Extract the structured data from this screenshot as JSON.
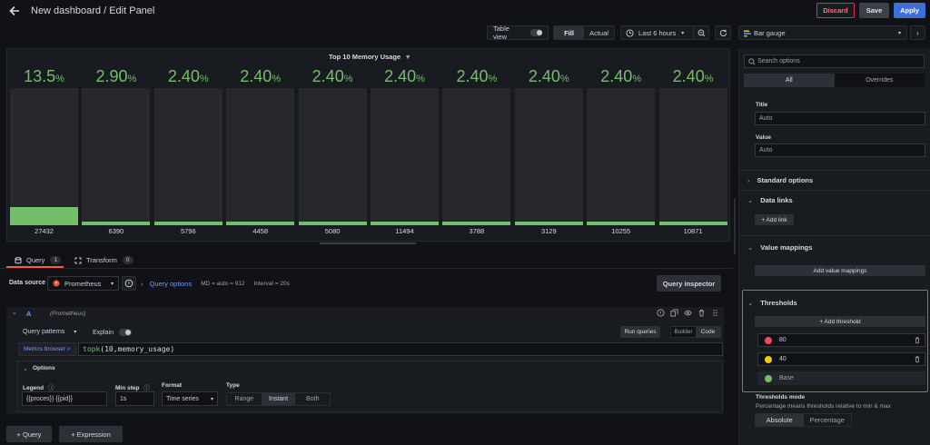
{
  "header": {
    "title": "New dashboard / Edit Panel",
    "discard_label": "Discard",
    "save_label": "Save",
    "apply_label": "Apply"
  },
  "toolbar": {
    "table_view_label": "Table view",
    "fill_label": "Fill",
    "actual_label": "Actual",
    "time_range": "Last 6 hours"
  },
  "panel": {
    "title": "Top 10 Memory Usage",
    "gauges": [
      {
        "value": "13.5",
        "unit": "%",
        "label": "27432",
        "fill_pct": 13.5
      },
      {
        "value": "2.90",
        "unit": "%",
        "label": "6390",
        "fill_pct": 2.9
      },
      {
        "value": "2.40",
        "unit": "%",
        "label": "5796",
        "fill_pct": 2.4
      },
      {
        "value": "2.40",
        "unit": "%",
        "label": "4458",
        "fill_pct": 2.4
      },
      {
        "value": "2.40",
        "unit": "%",
        "label": "5080",
        "fill_pct": 2.4
      },
      {
        "value": "2.40",
        "unit": "%",
        "label": "11494",
        "fill_pct": 2.4
      },
      {
        "value": "2.40",
        "unit": "%",
        "label": "3788",
        "fill_pct": 2.4
      },
      {
        "value": "2.40",
        "unit": "%",
        "label": "3129",
        "fill_pct": 2.4
      },
      {
        "value": "2.40",
        "unit": "%",
        "label": "10255",
        "fill_pct": 2.4
      },
      {
        "value": "2.40",
        "unit": "%",
        "label": "10871",
        "fill_pct": 2.4
      }
    ],
    "gauge_color": "#73bf69"
  },
  "tabs": {
    "query_label": "Query",
    "query_count": "1",
    "transform_label": "Transform",
    "transform_count": "0"
  },
  "datasource": {
    "label": "Data source",
    "name": "Prometheus",
    "query_options_label": "Query options",
    "md_info": "MD = auto = 912",
    "interval_info": "Interval = 20s",
    "inspector_label": "Query inspector"
  },
  "query": {
    "ref_id": "A",
    "ds_hint": "(Prometheus)",
    "patterns_label": "Query patterns",
    "explain_label": "Explain",
    "run_label": "Run queries",
    "builder_label": "Builder",
    "code_label": "Code",
    "metrics_browser_label": "Metrics browser >",
    "expr_fn": "topk",
    "expr_args": "(10,memory_usage)",
    "options_title": "Options",
    "legend_label": "Legend",
    "legend_value": "{{proces}} {{pid}}",
    "min_step_label": "Min step",
    "min_step_value": "1s",
    "format_label": "Format",
    "format_value": "Time series",
    "type_label": "Type",
    "type_range": "Range",
    "type_instant": "Instant",
    "type_both": "Both"
  },
  "add_buttons": {
    "query": "+ Query",
    "expression": "+ Expression"
  },
  "options_pane": {
    "viz_name": "Bar gauge",
    "search_placeholder": "Search options",
    "tab_all": "All",
    "tab_overrides": "Overrides",
    "title_label": "Title",
    "title_value": "Auto",
    "value_label": "Value",
    "value_value": "Auto",
    "standard_options": "Standard options",
    "data_links": "Data links",
    "add_link": "+ Add link",
    "value_mappings": "Value mappings",
    "add_value_mappings": "Add value mappings",
    "thresholds": "Thresholds",
    "add_threshold": "+ Add threshold",
    "thresholds_list": [
      {
        "value": "80",
        "color": "#f2495c"
      },
      {
        "value": "40",
        "color": "#f2cc0c"
      },
      {
        "value": "Base",
        "color": "#73bf69"
      }
    ],
    "thresholds_mode_label": "Thresholds mode",
    "thresholds_mode_desc": "Percentage means thresholds relative to min & max",
    "mode_absolute": "Absolute",
    "mode_percentage": "Percentage"
  }
}
